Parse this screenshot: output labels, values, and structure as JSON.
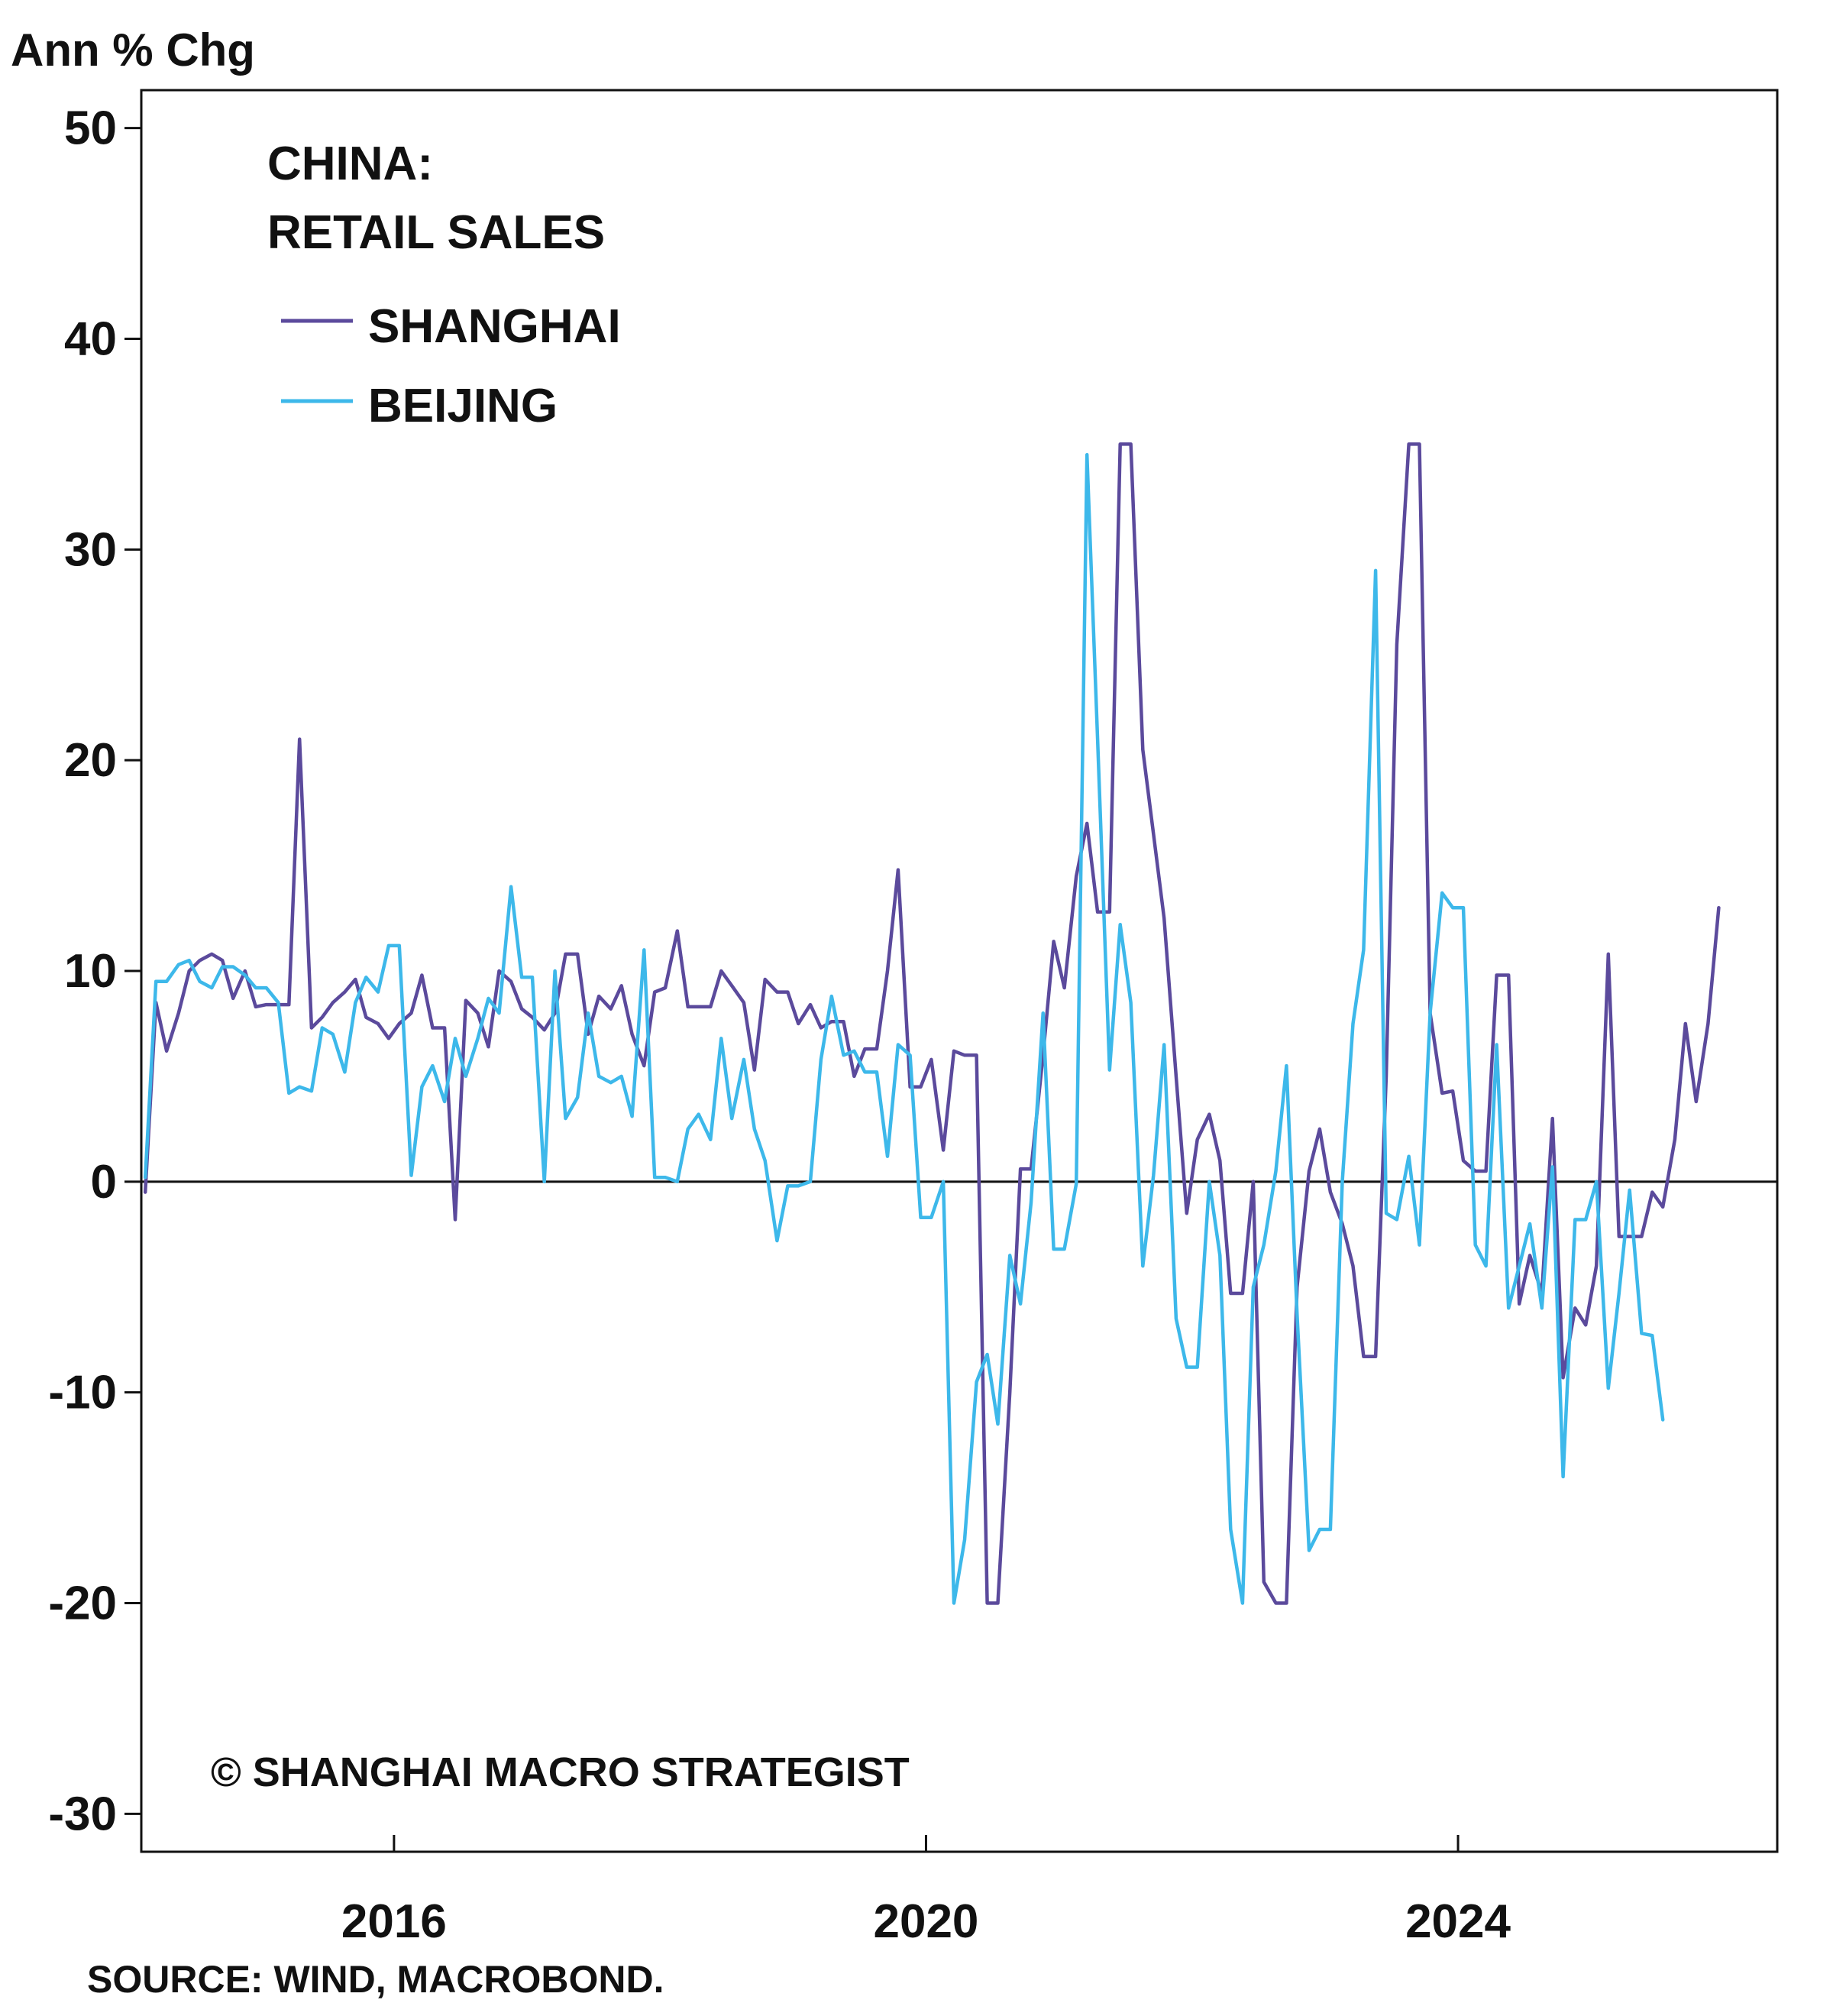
{
  "chart_data": {
    "type": "line",
    "title_lines": [
      "CHINA:",
      "RETAIL SALES"
    ],
    "ylabel": "Ann % Chg",
    "xlabel": "",
    "ylim": [
      -31.8,
      51.8
    ],
    "xlim": [
      2014.1,
      2026.4
    ],
    "yticks": [
      50,
      40,
      30,
      20,
      10,
      0,
      -10,
      -20,
      -30
    ],
    "ytick_labels": [
      "50",
      "40",
      "30",
      "20",
      "10",
      "0",
      "-10",
      "-20",
      "-30"
    ],
    "xticks": [
      2016,
      2020,
      2024
    ],
    "xtick_labels": [
      "2016",
      "2020",
      "2024"
    ],
    "zero_line": true,
    "grid": false,
    "legend_position": "top-left",
    "note": "© SHANGHAI MACRO STRATEGIST",
    "source": "SOURCE: WIND, MACROBOND.",
    "colors": {
      "shanghai": "#5b4a9c",
      "beijing": "#3db8ea"
    },
    "series": [
      {
        "name": "SHANGHAI",
        "points": [
          [
            2014.13,
            -0.5
          ],
          [
            2014.21,
            8.5
          ],
          [
            2014.29,
            6.2
          ],
          [
            2014.38,
            8.0
          ],
          [
            2014.46,
            10.0
          ],
          [
            2014.54,
            10.5
          ],
          [
            2014.63,
            10.8
          ],
          [
            2014.71,
            10.5
          ],
          [
            2014.79,
            8.7
          ],
          [
            2014.88,
            10.0
          ],
          [
            2014.96,
            8.3
          ],
          [
            2015.04,
            8.4
          ],
          [
            2015.13,
            8.4
          ],
          [
            2015.21,
            8.4
          ],
          [
            2015.29,
            21.0
          ],
          [
            2015.38,
            7.3
          ],
          [
            2015.46,
            7.8
          ],
          [
            2015.54,
            8.5
          ],
          [
            2015.63,
            9.0
          ],
          [
            2015.71,
            9.6
          ],
          [
            2015.79,
            7.8
          ],
          [
            2015.88,
            7.5
          ],
          [
            2015.96,
            6.8
          ],
          [
            2016.04,
            7.5
          ],
          [
            2016.13,
            8.0
          ],
          [
            2016.21,
            9.8
          ],
          [
            2016.29,
            7.3
          ],
          [
            2016.38,
            7.3
          ],
          [
            2016.46,
            -1.8
          ],
          [
            2016.54,
            8.6
          ],
          [
            2016.63,
            8.0
          ],
          [
            2016.71,
            6.4
          ],
          [
            2016.79,
            10.0
          ],
          [
            2016.88,
            9.5
          ],
          [
            2016.96,
            8.2
          ],
          [
            2017.04,
            7.8
          ],
          [
            2017.13,
            7.2
          ],
          [
            2017.21,
            8.0
          ],
          [
            2017.29,
            10.8
          ],
          [
            2017.38,
            10.8
          ],
          [
            2017.46,
            7.0
          ],
          [
            2017.54,
            8.8
          ],
          [
            2017.63,
            8.2
          ],
          [
            2017.71,
            9.3
          ],
          [
            2017.79,
            7.0
          ],
          [
            2017.88,
            5.5
          ],
          [
            2017.96,
            9.0
          ],
          [
            2018.04,
            9.2
          ],
          [
            2018.13,
            11.9
          ],
          [
            2018.21,
            8.3
          ],
          [
            2018.29,
            8.3
          ],
          [
            2018.38,
            8.3
          ],
          [
            2018.46,
            10.0
          ],
          [
            2018.54,
            9.3
          ],
          [
            2018.63,
            8.5
          ],
          [
            2018.71,
            5.3
          ],
          [
            2018.79,
            9.6
          ],
          [
            2018.88,
            9.0
          ],
          [
            2018.96,
            9.0
          ],
          [
            2019.04,
            7.5
          ],
          [
            2019.13,
            8.4
          ],
          [
            2019.21,
            7.3
          ],
          [
            2019.29,
            7.6
          ],
          [
            2019.38,
            7.6
          ],
          [
            2019.46,
            5.0
          ],
          [
            2019.54,
            6.3
          ],
          [
            2019.63,
            6.3
          ],
          [
            2019.71,
            10.0
          ],
          [
            2019.79,
            14.8
          ],
          [
            2019.88,
            4.5
          ],
          [
            2019.96,
            4.5
          ],
          [
            2020.04,
            5.8
          ],
          [
            2020.13,
            1.5
          ],
          [
            2020.21,
            6.2
          ],
          [
            2020.29,
            6.0
          ],
          [
            2020.38,
            6.0
          ],
          [
            2020.46,
            -20.0
          ],
          [
            2020.54,
            -20.0
          ],
          [
            2020.63,
            -10.0
          ],
          [
            2020.71,
            0.6
          ],
          [
            2020.79,
            0.6
          ],
          [
            2020.88,
            6.0
          ],
          [
            2020.96,
            11.4
          ],
          [
            2021.04,
            9.2
          ],
          [
            2021.13,
            14.5
          ],
          [
            2021.21,
            17.0
          ],
          [
            2021.29,
            12.8
          ],
          [
            2021.38,
            12.8
          ],
          [
            2021.46,
            35.0
          ],
          [
            2021.54,
            35.0
          ],
          [
            2021.63,
            20.5
          ],
          [
            2021.71,
            16.5
          ],
          [
            2021.79,
            12.5
          ],
          [
            2021.88,
            5.0
          ],
          [
            2021.96,
            -1.5
          ],
          [
            2022.04,
            2.0
          ],
          [
            2022.13,
            3.2
          ],
          [
            2022.21,
            1.0
          ],
          [
            2022.29,
            -5.3
          ],
          [
            2022.38,
            -5.3
          ],
          [
            2022.46,
            0.0
          ],
          [
            2022.54,
            -19.0
          ],
          [
            2022.63,
            -20.0
          ],
          [
            2022.71,
            -20.0
          ],
          [
            2022.79,
            -5.0
          ],
          [
            2022.88,
            0.5
          ],
          [
            2022.96,
            2.5
          ],
          [
            2023.04,
            -0.5
          ],
          [
            2023.13,
            -2.0
          ],
          [
            2023.21,
            -4.0
          ],
          [
            2023.29,
            -8.3
          ],
          [
            2023.38,
            -8.3
          ],
          [
            2023.46,
            5.0
          ],
          [
            2023.54,
            25.5
          ],
          [
            2023.63,
            35.0
          ],
          [
            2023.71,
            35.0
          ],
          [
            2023.79,
            8.0
          ],
          [
            2023.88,
            4.2
          ],
          [
            2023.96,
            4.3
          ],
          [
            2024.04,
            1.0
          ],
          [
            2024.13,
            0.5
          ],
          [
            2024.21,
            0.5
          ],
          [
            2024.29,
            9.8
          ],
          [
            2024.38,
            9.8
          ],
          [
            2024.46,
            -5.8
          ],
          [
            2024.54,
            -3.5
          ],
          [
            2024.63,
            -5.3
          ],
          [
            2024.71,
            3.0
          ],
          [
            2024.79,
            -9.3
          ],
          [
            2024.88,
            -6.0
          ],
          [
            2024.96,
            -6.8
          ],
          [
            2025.04,
            -4.0
          ],
          [
            2025.13,
            10.8
          ],
          [
            2025.21,
            -2.6
          ],
          [
            2025.29,
            -2.6
          ],
          [
            2025.38,
            -2.6
          ],
          [
            2025.46,
            -0.5
          ],
          [
            2025.54,
            -1.2
          ],
          [
            2025.63,
            2.0
          ],
          [
            2025.71,
            7.5
          ],
          [
            2025.79,
            3.8
          ],
          [
            2025.88,
            7.5
          ],
          [
            2025.96,
            13.0
          ]
        ]
      },
      {
        "name": "BEIJING",
        "points": [
          [
            2014.13,
            0.2
          ],
          [
            2014.21,
            9.5
          ],
          [
            2014.29,
            9.5
          ],
          [
            2014.38,
            10.3
          ],
          [
            2014.46,
            10.5
          ],
          [
            2014.54,
            9.5
          ],
          [
            2014.63,
            9.2
          ],
          [
            2014.71,
            10.2
          ],
          [
            2014.79,
            10.2
          ],
          [
            2014.88,
            9.8
          ],
          [
            2014.96,
            9.2
          ],
          [
            2015.04,
            9.2
          ],
          [
            2015.13,
            8.5
          ],
          [
            2015.21,
            4.2
          ],
          [
            2015.29,
            4.5
          ],
          [
            2015.38,
            4.3
          ],
          [
            2015.46,
            7.3
          ],
          [
            2015.54,
            7.0
          ],
          [
            2015.63,
            5.2
          ],
          [
            2015.71,
            8.5
          ],
          [
            2015.79,
            9.7
          ],
          [
            2015.88,
            9.0
          ],
          [
            2015.96,
            11.2
          ],
          [
            2016.04,
            11.2
          ],
          [
            2016.13,
            0.3
          ],
          [
            2016.21,
            4.5
          ],
          [
            2016.29,
            5.5
          ],
          [
            2016.38,
            3.8
          ],
          [
            2016.46,
            6.8
          ],
          [
            2016.54,
            5.0
          ],
          [
            2016.63,
            6.8
          ],
          [
            2016.71,
            8.7
          ],
          [
            2016.79,
            8.0
          ],
          [
            2016.88,
            14.0
          ],
          [
            2016.96,
            9.7
          ],
          [
            2017.04,
            9.7
          ],
          [
            2017.13,
            0.0
          ],
          [
            2017.21,
            10.0
          ],
          [
            2017.29,
            3.0
          ],
          [
            2017.38,
            4.0
          ],
          [
            2017.46,
            8.0
          ],
          [
            2017.54,
            5.0
          ],
          [
            2017.63,
            4.7
          ],
          [
            2017.71,
            5.0
          ],
          [
            2017.79,
            3.1
          ],
          [
            2017.88,
            11.0
          ],
          [
            2017.96,
            0.2
          ],
          [
            2018.04,
            0.2
          ],
          [
            2018.13,
            0.0
          ],
          [
            2018.21,
            2.5
          ],
          [
            2018.29,
            3.2
          ],
          [
            2018.38,
            2.0
          ],
          [
            2018.46,
            6.8
          ],
          [
            2018.54,
            3.0
          ],
          [
            2018.63,
            5.8
          ],
          [
            2018.71,
            2.5
          ],
          [
            2018.79,
            1.0
          ],
          [
            2018.88,
            -2.8
          ],
          [
            2018.96,
            -0.2
          ],
          [
            2019.04,
            -0.2
          ],
          [
            2019.13,
            0.0
          ],
          [
            2019.21,
            5.8
          ],
          [
            2019.29,
            8.8
          ],
          [
            2019.38,
            6.0
          ],
          [
            2019.46,
            6.2
          ],
          [
            2019.54,
            5.2
          ],
          [
            2019.63,
            5.2
          ],
          [
            2019.71,
            1.2
          ],
          [
            2019.79,
            6.5
          ],
          [
            2019.88,
            6.0
          ],
          [
            2019.96,
            -1.7
          ],
          [
            2020.04,
            -1.7
          ],
          [
            2020.13,
            0.0
          ],
          [
            2020.21,
            -20.0
          ],
          [
            2020.29,
            -17.0
          ],
          [
            2020.38,
            -9.5
          ],
          [
            2020.46,
            -8.2
          ],
          [
            2020.54,
            -11.5
          ],
          [
            2020.63,
            -3.5
          ],
          [
            2020.71,
            -5.8
          ],
          [
            2020.79,
            -1.0
          ],
          [
            2020.88,
            8.0
          ],
          [
            2020.96,
            -3.2
          ],
          [
            2021.04,
            -3.2
          ],
          [
            2021.13,
            -0.1
          ],
          [
            2021.21,
            34.5
          ],
          [
            2021.29,
            21.0
          ],
          [
            2021.38,
            5.3
          ],
          [
            2021.46,
            12.2
          ],
          [
            2021.54,
            8.5
          ],
          [
            2021.63,
            -4.0
          ],
          [
            2021.71,
            0.3
          ],
          [
            2021.79,
            6.5
          ],
          [
            2021.88,
            -6.5
          ],
          [
            2021.96,
            -8.8
          ],
          [
            2022.04,
            -8.8
          ],
          [
            2022.13,
            0.0
          ],
          [
            2022.21,
            -3.5
          ],
          [
            2022.29,
            -16.5
          ],
          [
            2022.38,
            -20.0
          ],
          [
            2022.46,
            -5.0
          ],
          [
            2022.54,
            -3.0
          ],
          [
            2022.63,
            0.5
          ],
          [
            2022.71,
            5.5
          ],
          [
            2022.79,
            -6.3
          ],
          [
            2022.88,
            -17.5
          ],
          [
            2022.96,
            -16.5
          ],
          [
            2023.04,
            -16.5
          ],
          [
            2023.13,
            0.0
          ],
          [
            2023.21,
            7.5
          ],
          [
            2023.29,
            11.0
          ],
          [
            2023.38,
            29.0
          ],
          [
            2023.46,
            -1.5
          ],
          [
            2023.54,
            -1.8
          ],
          [
            2023.63,
            1.2
          ],
          [
            2023.71,
            -3.0
          ],
          [
            2023.79,
            8.0
          ],
          [
            2023.88,
            13.7
          ],
          [
            2023.96,
            13.0
          ],
          [
            2024.04,
            13.0
          ],
          [
            2024.13,
            -3.0
          ],
          [
            2024.21,
            -4.0
          ],
          [
            2024.29,
            6.5
          ],
          [
            2024.38,
            -6.0
          ],
          [
            2024.46,
            -4.0
          ],
          [
            2024.54,
            -2.0
          ],
          [
            2024.63,
            -6.0
          ],
          [
            2024.71,
            0.7
          ],
          [
            2024.79,
            -14.0
          ],
          [
            2024.88,
            -1.8
          ],
          [
            2024.96,
            -1.8
          ],
          [
            2025.04,
            0.0
          ],
          [
            2025.13,
            -9.8
          ],
          [
            2025.21,
            -5.3
          ],
          [
            2025.29,
            -0.4
          ],
          [
            2025.38,
            -7.2
          ],
          [
            2025.46,
            -7.3
          ],
          [
            2025.54,
            -11.3
          ]
        ]
      }
    ]
  }
}
